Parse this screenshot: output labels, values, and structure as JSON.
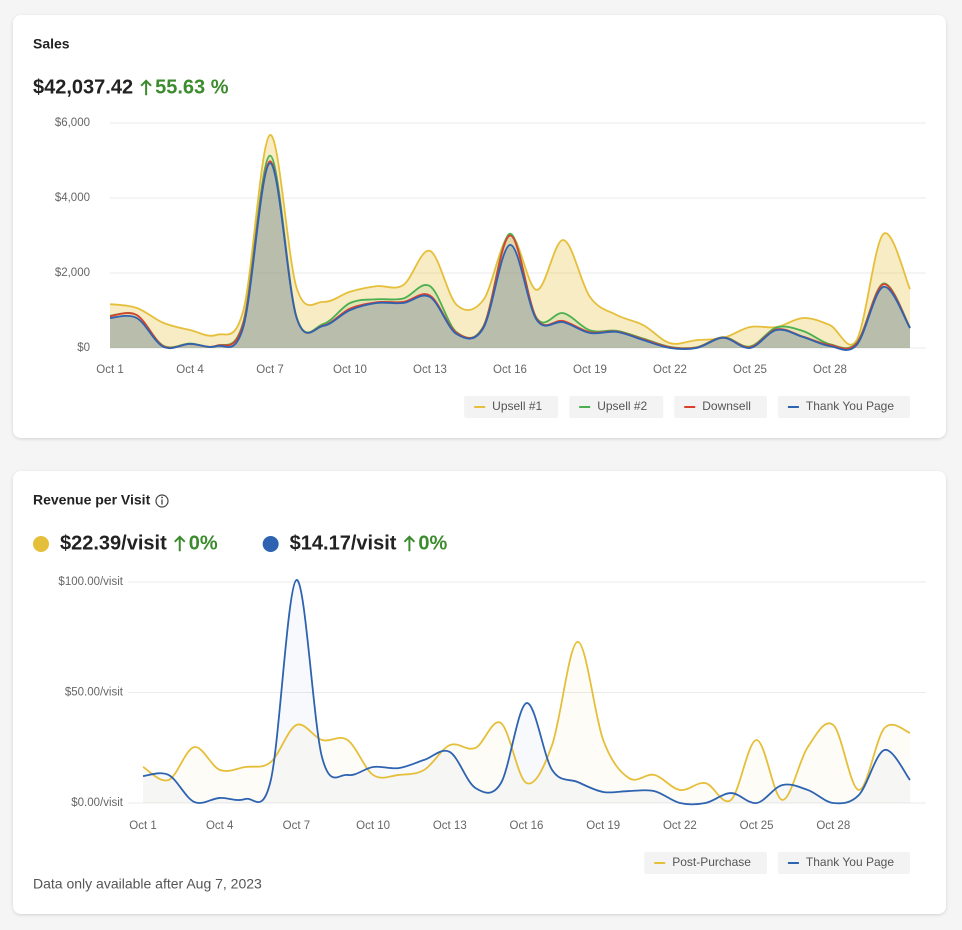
{
  "chart_data": [
    {
      "type": "area",
      "title": "Sales",
      "total": "$42,037.42",
      "change": "55.63 %",
      "categories": [
        "Oct 1",
        null,
        null,
        "Oct 4",
        null,
        null,
        "Oct 7",
        null,
        null,
        "Oct 10",
        null,
        null,
        "Oct 13",
        null,
        null,
        "Oct 16",
        null,
        null,
        "Oct 19",
        null,
        null,
        "Oct 22",
        null,
        null,
        "Oct 25",
        null,
        null,
        "Oct 28",
        null,
        null,
        null
      ],
      "ylim": [
        0,
        6000
      ],
      "yticks": [
        {
          "value": 0,
          "label": "$0"
        },
        {
          "value": 2000,
          "label": "$2,000"
        },
        {
          "value": 4000,
          "label": "$4,000"
        },
        {
          "value": 6000,
          "label": "$6,000"
        }
      ],
      "grid": true,
      "legend": "bottom-right",
      "series": [
        {
          "name": "Upsell #1",
          "color": "#e6bf3a",
          "values": [
            1170,
            1070,
            670,
            480,
            350,
            1000,
            5680,
            1600,
            1230,
            1500,
            1650,
            1680,
            2590,
            1150,
            1280,
            3010,
            1550,
            2880,
            1360,
            880,
            610,
            130,
            210,
            270,
            560,
            560,
            800,
            610,
            210,
            3040,
            1570
          ]
        },
        {
          "name": "Upsell #2",
          "color": "#4caf50",
          "values": [
            860,
            880,
            60,
            120,
            60,
            700,
            5130,
            820,
            640,
            1200,
            1300,
            1320,
            1650,
            420,
            580,
            3050,
            800,
            930,
            470,
            460,
            250,
            30,
            20,
            290,
            40,
            550,
            450,
            100,
            140,
            1720,
            550
          ]
        },
        {
          "name": "Downsell",
          "color": "#d9412e",
          "values": [
            850,
            880,
            50,
            110,
            60,
            650,
            4980,
            800,
            600,
            1050,
            1220,
            1230,
            1400,
            400,
            560,
            3000,
            780,
            720,
            420,
            440,
            230,
            20,
            10,
            280,
            20,
            500,
            300,
            80,
            120,
            1700,
            540
          ]
        },
        {
          "name": "Thank You Page",
          "color": "#2d63b0",
          "values": [
            800,
            800,
            30,
            110,
            50,
            560,
            4930,
            800,
            590,
            1010,
            1200,
            1200,
            1360,
            370,
            530,
            2750,
            750,
            690,
            400,
            430,
            210,
            0,
            0,
            270,
            0,
            480,
            290,
            50,
            80,
            1630,
            530
          ]
        }
      ]
    },
    {
      "type": "line",
      "title": "Revenue per Visit",
      "metrics": [
        {
          "value": "$22.39/visit",
          "change": "0%",
          "color": "#e6bf3a"
        },
        {
          "value": "$14.17/visit",
          "change": "0%",
          "color": "#2d63b0"
        }
      ],
      "note": "Data only available after Aug 7, 2023",
      "categories": [
        "Oct 1",
        null,
        null,
        "Oct 4",
        null,
        null,
        "Oct 7",
        null,
        null,
        "Oct 10",
        null,
        null,
        "Oct 13",
        null,
        null,
        "Oct 16",
        null,
        null,
        "Oct 19",
        null,
        null,
        "Oct 22",
        null,
        null,
        "Oct 25",
        null,
        null,
        "Oct 28",
        null,
        null,
        null
      ],
      "ylim": [
        0,
        100
      ],
      "yticks": [
        {
          "value": 0,
          "label": "$0.00/visit"
        },
        {
          "value": 50,
          "label": "$50.00/visit"
        },
        {
          "value": 100,
          "label": "$100.00/visit"
        }
      ],
      "grid": true,
      "legend": "bottom-right",
      "series": [
        {
          "name": "Post-Purchase",
          "color": "#e6bf3a",
          "values": [
            16.3,
            10.4,
            25.3,
            15,
            16.3,
            18.5,
            35.3,
            28.5,
            28.5,
            12.7,
            12.7,
            15,
            26.2,
            24.9,
            36.2,
            9,
            26.2,
            72.9,
            28.5,
            11.3,
            12.7,
            5.9,
            9,
            1.4,
            28.5,
            1.4,
            25.3,
            35.3,
            5.9,
            33.9,
            31.7
          ]
        },
        {
          "name": "Thank You Page",
          "color": "#2d63b0",
          "values": [
            12.2,
            12.7,
            0.5,
            2.3,
            1.8,
            10.4,
            100.9,
            20.8,
            12.7,
            16.3,
            15.8,
            19.5,
            23.1,
            6.8,
            9,
            45.2,
            15,
            9.5,
            5,
            5.4,
            5.4,
            0,
            0,
            4.5,
            0,
            8.1,
            5.9,
            0,
            3.6,
            24,
            10.4
          ]
        }
      ]
    }
  ]
}
